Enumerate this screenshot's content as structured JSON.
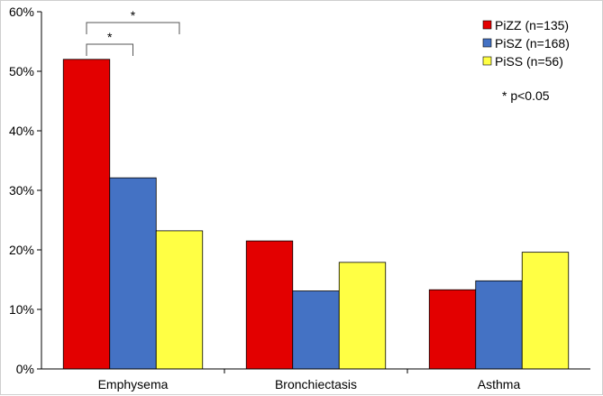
{
  "chart_data": {
    "type": "bar",
    "title": "",
    "xlabel": "",
    "ylabel": "",
    "ylim": [
      0,
      60
    ],
    "yticks": [
      "0%",
      "10%",
      "20%",
      "30%",
      "40%",
      "50%",
      "60%"
    ],
    "ytick_values": [
      0,
      10,
      20,
      30,
      40,
      50,
      60
    ],
    "categories": [
      "Emphysema",
      "Bronchiectasis",
      "Asthma"
    ],
    "series": [
      {
        "name": "PiZZ (n=135)",
        "color": "#e30000",
        "values": [
          52.0,
          21.5,
          13.3
        ]
      },
      {
        "name": "PiSZ (n=168)",
        "color": "#4472c4",
        "values": [
          32.1,
          13.1,
          14.8
        ]
      },
      {
        "name": "PiSS (n=56)",
        "color": "#ffff44",
        "values": [
          23.2,
          17.9,
          19.6
        ]
      }
    ],
    "legend_position": "top-right",
    "annotations": [
      {
        "text": "*",
        "category": "Emphysema",
        "from_series": 0,
        "to_series": 2
      },
      {
        "text": "*",
        "category": "Emphysema",
        "from_series": 0,
        "to_series": 1
      }
    ],
    "note": "* p<0.05"
  }
}
